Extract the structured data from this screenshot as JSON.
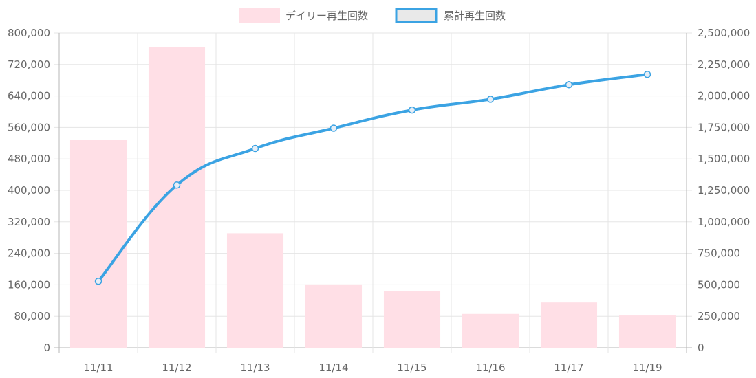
{
  "chart_data": {
    "type": "bar",
    "categories": [
      "11/11",
      "11/12",
      "11/13",
      "11/14",
      "11/15",
      "11/16",
      "11/17",
      "11/19"
    ],
    "series": [
      {
        "name": "デイリー再生回数",
        "type": "bar",
        "axis": "left",
        "values": [
          528000,
          764000,
          291000,
          161000,
          144000,
          86000,
          115000,
          82000
        ],
        "color": "#ffdfe6"
      },
      {
        "name": "累計再生回数",
        "type": "line",
        "axis": "right",
        "values": [
          528000,
          1292000,
          1583000,
          1744000,
          1888000,
          1974000,
          2089000,
          2171000
        ],
        "color": "#3ba3e3"
      }
    ],
    "y_left": {
      "ylim": [
        0,
        800000
      ],
      "ticks": [
        "800,000",
        "720,000",
        "640,000",
        "560,000",
        "480,000",
        "400,000",
        "320,000",
        "240,000",
        "160,000",
        "80,000",
        "0"
      ]
    },
    "y_right": {
      "ylim": [
        0,
        2500000
      ],
      "ticks": [
        "2,500,000",
        "2,250,000",
        "2,000,000",
        "1,750,000",
        "1,500,000",
        "1,250,000",
        "1,000,000",
        "750,000",
        "500,000",
        "250,000",
        "0"
      ]
    },
    "grid": true,
    "legend_position": "top",
    "axis_color": "#b7b7b7",
    "grid_color": "#e5e5e5"
  }
}
